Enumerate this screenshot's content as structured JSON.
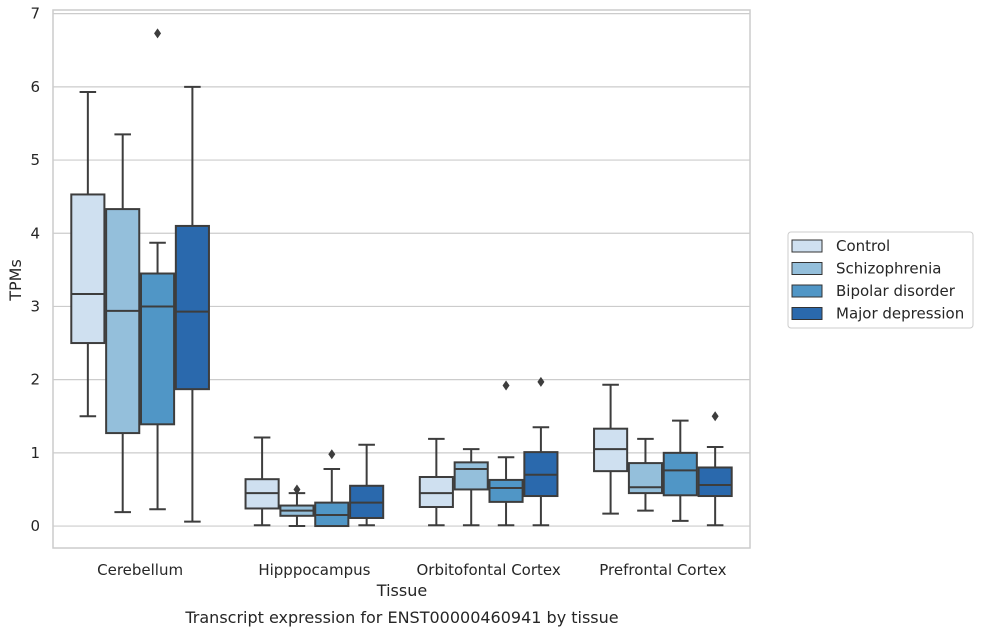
{
  "chart_data": {
    "type": "box",
    "caption": "Transcript expression for ENST00000460941 by tissue",
    "xlabel": "Tissue",
    "ylabel": "TPMs",
    "ylim": [
      -0.3,
      7.05
    ],
    "yticks": [
      0,
      1,
      2,
      3,
      4,
      5,
      6,
      7
    ],
    "grid": "horizontal",
    "legend_position": "right",
    "categories": [
      "Cerebellum",
      "Hipppocampus",
      "Orbitofontal Cortex",
      "Prefrontal Cortex"
    ],
    "series": [
      {
        "name": "Control",
        "color": "#cfe0f0",
        "boxes": [
          {
            "whislo": 1.5,
            "q1": 2.5,
            "med": 3.17,
            "q3": 4.53,
            "whishi": 5.93,
            "fliers": []
          },
          {
            "whislo": 0.01,
            "q1": 0.24,
            "med": 0.45,
            "q3": 0.64,
            "whishi": 1.21,
            "fliers": []
          },
          {
            "whislo": 0.01,
            "q1": 0.26,
            "med": 0.45,
            "q3": 0.67,
            "whishi": 1.19,
            "fliers": []
          },
          {
            "whislo": 0.17,
            "q1": 0.75,
            "med": 1.05,
            "q3": 1.33,
            "whishi": 1.93,
            "fliers": []
          }
        ]
      },
      {
        "name": "Schizophrenia",
        "color": "#94bfdb",
        "boxes": [
          {
            "whislo": 0.19,
            "q1": 1.27,
            "med": 2.94,
            "q3": 4.33,
            "whishi": 5.35,
            "fliers": []
          },
          {
            "whislo": 0.0,
            "q1": 0.14,
            "med": 0.21,
            "q3": 0.28,
            "whishi": 0.45,
            "fliers": [
              0.5
            ]
          },
          {
            "whislo": 0.01,
            "q1": 0.5,
            "med": 0.78,
            "q3": 0.87,
            "whishi": 1.05,
            "fliers": []
          },
          {
            "whislo": 0.21,
            "q1": 0.45,
            "med": 0.53,
            "q3": 0.86,
            "whishi": 1.19,
            "fliers": []
          }
        ]
      },
      {
        "name": "Bipolar disorder",
        "color": "#5096c6",
        "boxes": [
          {
            "whislo": 0.23,
            "q1": 1.39,
            "med": 3.0,
            "q3": 3.45,
            "whishi": 3.87,
            "fliers": [
              6.73
            ]
          },
          {
            "whislo": 0.0,
            "q1": 0.0,
            "med": 0.15,
            "q3": 0.32,
            "whishi": 0.78,
            "fliers": [
              0.98
            ]
          },
          {
            "whislo": 0.01,
            "q1": 0.33,
            "med": 0.52,
            "q3": 0.63,
            "whishi": 0.94,
            "fliers": [
              1.92
            ]
          },
          {
            "whislo": 0.07,
            "q1": 0.42,
            "med": 0.76,
            "q3": 1.0,
            "whishi": 1.44,
            "fliers": []
          }
        ]
      },
      {
        "name": "Major depression",
        "color": "#2a69ad",
        "boxes": [
          {
            "whislo": 0.06,
            "q1": 1.87,
            "med": 2.93,
            "q3": 4.1,
            "whishi": 6.0,
            "fliers": []
          },
          {
            "whislo": 0.01,
            "q1": 0.11,
            "med": 0.32,
            "q3": 0.55,
            "whishi": 1.11,
            "fliers": []
          },
          {
            "whislo": 0.01,
            "q1": 0.41,
            "med": 0.7,
            "q3": 1.01,
            "whishi": 1.35,
            "fliers": [
              1.97
            ]
          },
          {
            "whislo": 0.01,
            "q1": 0.41,
            "med": 0.56,
            "q3": 0.8,
            "whishi": 1.08,
            "fliers": [
              1.5
            ]
          }
        ]
      }
    ],
    "style": {
      "edge_color": "#3d3d3d",
      "grid_color": "#cccccc",
      "frame_color": "#cccccc"
    }
  }
}
